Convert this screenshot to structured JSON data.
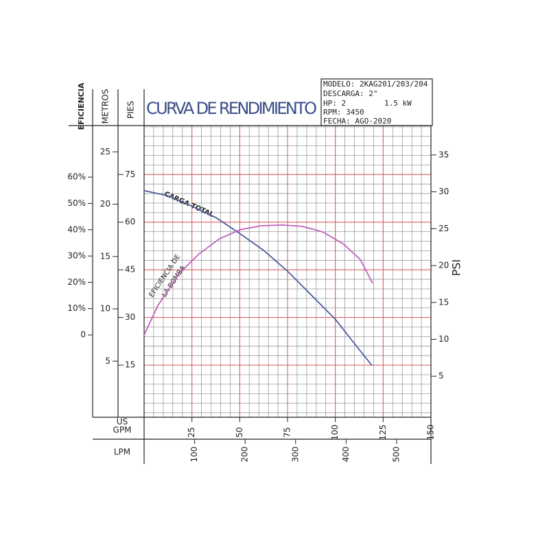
{
  "chart_data": {
    "type": "line",
    "title": "CURVA DE RENDIMIENTO",
    "info": [
      "MODELO: 2KAG201/203/204",
      "DESCARGA: 2\"",
      "HP: 2",
      "1.5 kW",
      "RPM: 3450",
      "FECHA: AGO-2020"
    ],
    "x_axes": [
      {
        "label_lines": [
          "US",
          "GPM"
        ],
        "xlim": [
          0,
          150
        ],
        "xticks": [
          25,
          50,
          75,
          100,
          125,
          150
        ]
      },
      {
        "label": "LPM",
        "xlim": [
          0,
          568
        ],
        "xticks": [
          100,
          200,
          300,
          400,
          500
        ]
      }
    ],
    "y_axes": [
      {
        "label": "EFICIENCIA",
        "ylim": [
          -31.3,
          79.6
        ],
        "yticks": [
          {
            "value": 0,
            "label": "0"
          },
          {
            "value": 10,
            "label": "10%"
          },
          {
            "value": 20,
            "label": "20%"
          },
          {
            "value": 30,
            "label": "30%"
          },
          {
            "value": 40,
            "label": "40%"
          },
          {
            "value": 50,
            "label": "50%"
          },
          {
            "value": 60,
            "label": "60%"
          }
        ]
      },
      {
        "label": "METROS",
        "ylim": [
          -0.36,
          27.51
        ],
        "yticks": [
          5,
          10,
          15,
          20,
          25
        ]
      },
      {
        "label": "PIES",
        "ylim": [
          -1.4,
          90.4
        ],
        "yticks": [
          15,
          30,
          45,
          60,
          75
        ]
      },
      {
        "label": "PSI",
        "ylim": [
          -0.56,
          38.98
        ],
        "yticks": [
          5,
          10,
          15,
          20,
          25,
          30,
          35
        ]
      }
    ],
    "series": [
      {
        "name": "CARGA TOTAL",
        "color": "#4c5c9c",
        "y_axis": 1,
        "x": [
          0,
          12.6,
          25,
          37.7,
          50,
          62.4,
          75,
          87.5,
          100,
          111.2,
          119.1
        ],
        "values": [
          21.3,
          20.8,
          19.8,
          18.7,
          17.2,
          15.6,
          13.6,
          11.3,
          9.0,
          6.4,
          4.6
        ]
      },
      {
        "name_lines": [
          "EFICIENCIA DE",
          "LA BOMBA"
        ],
        "color": "#c060c0",
        "y_axis": 0,
        "x": [
          0,
          7.2,
          17.9,
          28.7,
          39.5,
          50.2,
          61,
          71.8,
          82.5,
          93.3,
          104,
          113,
          119.5
        ],
        "values": [
          0,
          11.2,
          23,
          30.8,
          36.6,
          40,
          41.5,
          41.8,
          41.3,
          39.2,
          34.7,
          28.7,
          19.6
        ]
      }
    ]
  }
}
